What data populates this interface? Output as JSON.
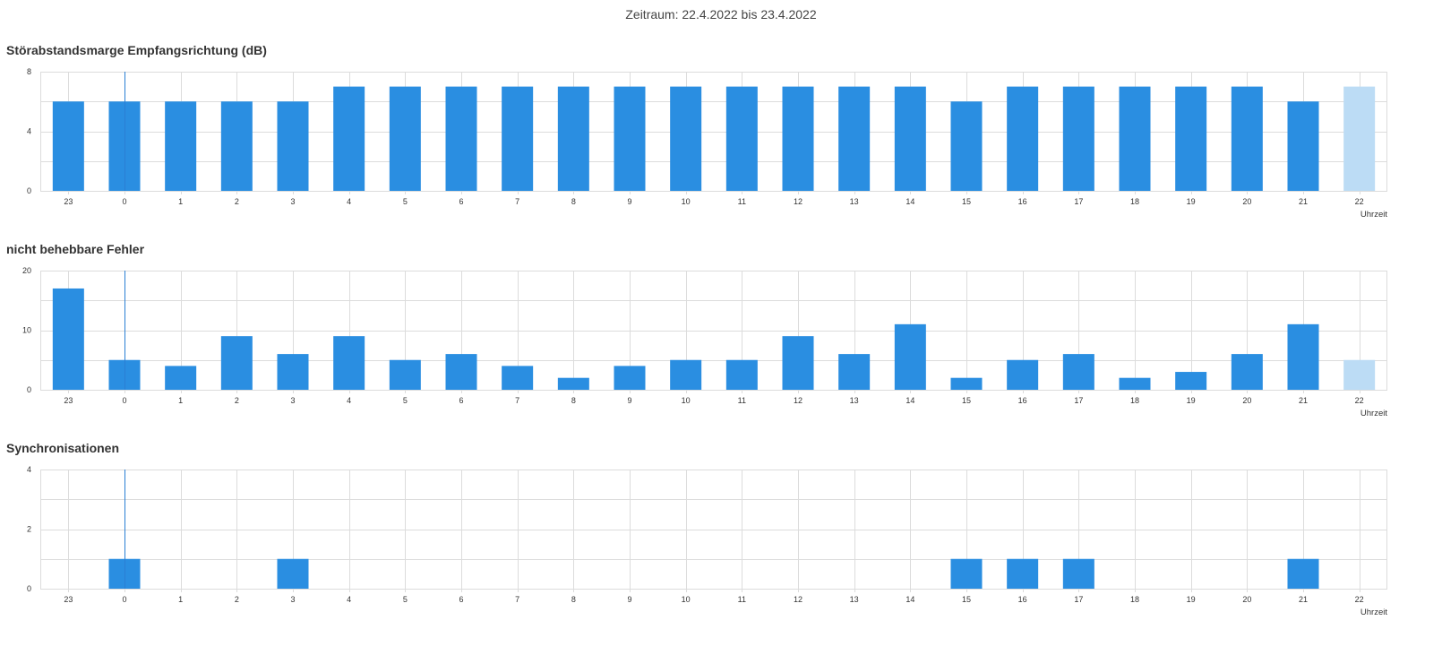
{
  "period": "Zeitraum: 22.4.2022 bis 23.4.2022",
  "colors": {
    "bar": "#2a8ee1",
    "bar_pending": "#bcdcf5",
    "grid": "#dcdcdc",
    "marker": "#2a7fd4"
  },
  "chart_data": [
    {
      "type": "bar",
      "title": "Störabstandsmarge Empfangsrichtung (dB)",
      "categories": [
        "23",
        "0",
        "1",
        "2",
        "3",
        "4",
        "5",
        "6",
        "7",
        "8",
        "9",
        "10",
        "11",
        "12",
        "13",
        "14",
        "15",
        "16",
        "17",
        "18",
        "19",
        "20",
        "21",
        "22"
      ],
      "values": [
        6,
        6,
        6,
        6,
        6,
        7,
        7,
        7,
        7,
        7,
        7,
        7,
        7,
        7,
        7,
        7,
        6,
        7,
        7,
        7,
        7,
        7,
        6,
        7
      ],
      "pending_last": true,
      "marker_category": "0",
      "xlabel": "Uhrzeit",
      "ylim": [
        0,
        8
      ],
      "yticks": [
        0,
        4,
        8
      ],
      "grid_step": 2,
      "grid": true
    },
    {
      "type": "bar",
      "title": "nicht behebbare Fehler",
      "categories": [
        "23",
        "0",
        "1",
        "2",
        "3",
        "4",
        "5",
        "6",
        "7",
        "8",
        "9",
        "10",
        "11",
        "12",
        "13",
        "14",
        "15",
        "16",
        "17",
        "18",
        "19",
        "20",
        "21",
        "22"
      ],
      "values": [
        17,
        5,
        4,
        9,
        6,
        9,
        5,
        6,
        4,
        2,
        4,
        5,
        5,
        9,
        6,
        11,
        2,
        5,
        6,
        2,
        3,
        6,
        11,
        5
      ],
      "pending_last": true,
      "marker_category": "0",
      "xlabel": "Uhrzeit",
      "ylim": [
        0,
        20
      ],
      "yticks": [
        0,
        10,
        20
      ],
      "grid_step": 5,
      "grid": true
    },
    {
      "type": "bar",
      "title": "Synchronisationen",
      "categories": [
        "23",
        "0",
        "1",
        "2",
        "3",
        "4",
        "5",
        "6",
        "7",
        "8",
        "9",
        "10",
        "11",
        "12",
        "13",
        "14",
        "15",
        "16",
        "17",
        "18",
        "19",
        "20",
        "21",
        "22"
      ],
      "values": [
        0,
        1,
        0,
        0,
        1,
        0,
        0,
        0,
        0,
        0,
        0,
        0,
        0,
        0,
        0,
        0,
        1,
        1,
        1,
        0,
        0,
        0,
        1,
        0
      ],
      "pending_last": true,
      "marker_category": "0",
      "xlabel": "Uhrzeit",
      "ylim": [
        0,
        4
      ],
      "yticks": [
        0,
        2,
        4
      ],
      "grid_step": 1,
      "grid": true
    }
  ]
}
